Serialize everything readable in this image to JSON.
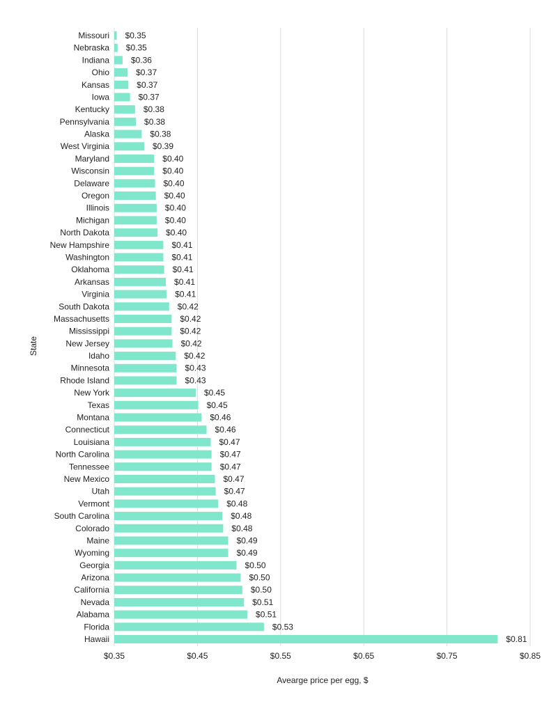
{
  "chart_data": {
    "type": "bar",
    "orientation": "horizontal",
    "title": "",
    "xlabel": "Avearge price per egg, $",
    "ylabel": "State",
    "xlim": [
      0.35,
      0.85
    ],
    "xticks": [
      0.35,
      0.45,
      0.55,
      0.65,
      0.75,
      0.85
    ],
    "xtick_labels": [
      "$0.35",
      "$0.45",
      "$0.55",
      "$0.65",
      "$0.75",
      "$0.85"
    ],
    "grid": "vertical",
    "bar_color": "#80e6cc",
    "categories": [
      "Missouri",
      "Nebraska",
      "Indiana",
      "Ohio",
      "Kansas",
      "Iowa",
      "Kentucky",
      "Pennsylvania",
      "Alaska",
      "West Virginia",
      "Maryland",
      "Wisconsin",
      "Delaware",
      "Oregon",
      "Illinois",
      "Michigan",
      "North Dakota",
      "New Hampshire",
      "Washington",
      "Oklahoma",
      "Arkansas",
      "Virginia",
      "South Dakota",
      "Massachusetts",
      "Mississippi",
      "New Jersey",
      "Idaho",
      "Minnesota",
      "Rhode Island",
      "New York",
      "Texas",
      "Montana",
      "Connecticut",
      "Louisiana",
      "North Carolina",
      "Tennessee",
      "New Mexico",
      "Utah",
      "Vermont",
      "South Carolina",
      "Colorado",
      "Maine",
      "Wyoming",
      "Georgia",
      "Arizona",
      "California",
      "Nevada",
      "Alabama",
      "Florida",
      "Hawaii"
    ],
    "values": [
      0.353,
      0.354,
      0.36,
      0.366,
      0.367,
      0.369,
      0.375,
      0.376,
      0.383,
      0.386,
      0.398,
      0.398,
      0.399,
      0.4,
      0.401,
      0.401,
      0.402,
      0.409,
      0.409,
      0.41,
      0.412,
      0.413,
      0.416,
      0.419,
      0.419,
      0.42,
      0.424,
      0.425,
      0.425,
      0.448,
      0.451,
      0.455,
      0.461,
      0.466,
      0.467,
      0.467,
      0.471,
      0.472,
      0.475,
      0.48,
      0.481,
      0.487,
      0.487,
      0.497,
      0.502,
      0.504,
      0.506,
      0.51,
      0.53,
      0.811
    ],
    "value_labels": [
      "$0.35",
      "$0.35",
      "$0.36",
      "$0.37",
      "$0.37",
      "$0.37",
      "$0.38",
      "$0.38",
      "$0.38",
      "$0.39",
      "$0.40",
      "$0.40",
      "$0.40",
      "$0.40",
      "$0.40",
      "$0.40",
      "$0.40",
      "$0.41",
      "$0.41",
      "$0.41",
      "$0.41",
      "$0.41",
      "$0.42",
      "$0.42",
      "$0.42",
      "$0.42",
      "$0.42",
      "$0.43",
      "$0.43",
      "$0.45",
      "$0.45",
      "$0.46",
      "$0.46",
      "$0.47",
      "$0.47",
      "$0.47",
      "$0.47",
      "$0.47",
      "$0.48",
      "$0.48",
      "$0.48",
      "$0.49",
      "$0.49",
      "$0.50",
      "$0.50",
      "$0.50",
      "$0.51",
      "$0.51",
      "$0.53",
      "$0.81"
    ]
  }
}
